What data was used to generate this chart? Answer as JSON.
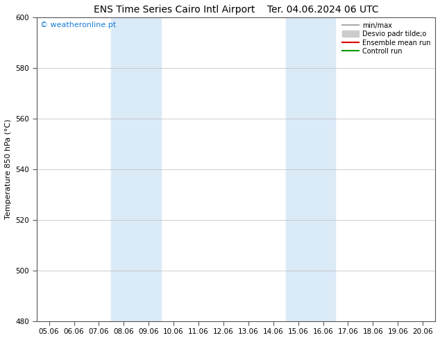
{
  "title_left": "ENS Time Series Cairo Intl Airport",
  "title_right": "Ter. 04.06.2024 06 UTC",
  "ylabel": "Temperature 850 hPa (°C)",
  "xlim_dates": [
    "05.06",
    "06.06",
    "07.06",
    "08.06",
    "09.06",
    "10.06",
    "11.06",
    "12.06",
    "13.06",
    "14.06",
    "15.06",
    "16.06",
    "17.06",
    "18.06",
    "19.06",
    "20.06"
  ],
  "ylim": [
    480,
    600
  ],
  "yticks": [
    480,
    500,
    520,
    540,
    560,
    580,
    600
  ],
  "watermark": "© weatheronline.pt",
  "watermark_color": "#1a7cd4",
  "shaded_bands": [
    {
      "label_start": "08.06",
      "label_end": "10.06"
    },
    {
      "label_start": "15.06",
      "label_end": "17.06"
    }
  ],
  "shaded_color": "#dbeaf7",
  "legend_entries": [
    {
      "label": "min/max",
      "color": "#aaaaaa",
      "lw": 1.5,
      "style": "line"
    },
    {
      "label": "Desvio padr tilde;o",
      "color": "#cccccc",
      "lw": 8,
      "style": "bar"
    },
    {
      "label": "Ensemble mean run",
      "color": "#dd0000",
      "lw": 1.5,
      "style": "line"
    },
    {
      "label": "Controll run",
      "color": "#009900",
      "lw": 1.5,
      "style": "line"
    }
  ],
  "bg_color": "#ffffff",
  "plot_bg_color": "#ffffff",
  "spine_color": "#555555",
  "tick_color": "#333333",
  "grid_color": "#bbbbbb",
  "title_fontsize": 10,
  "tick_fontsize": 7.5,
  "ylabel_fontsize": 8,
  "watermark_fontsize": 8,
  "legend_fontsize": 7
}
